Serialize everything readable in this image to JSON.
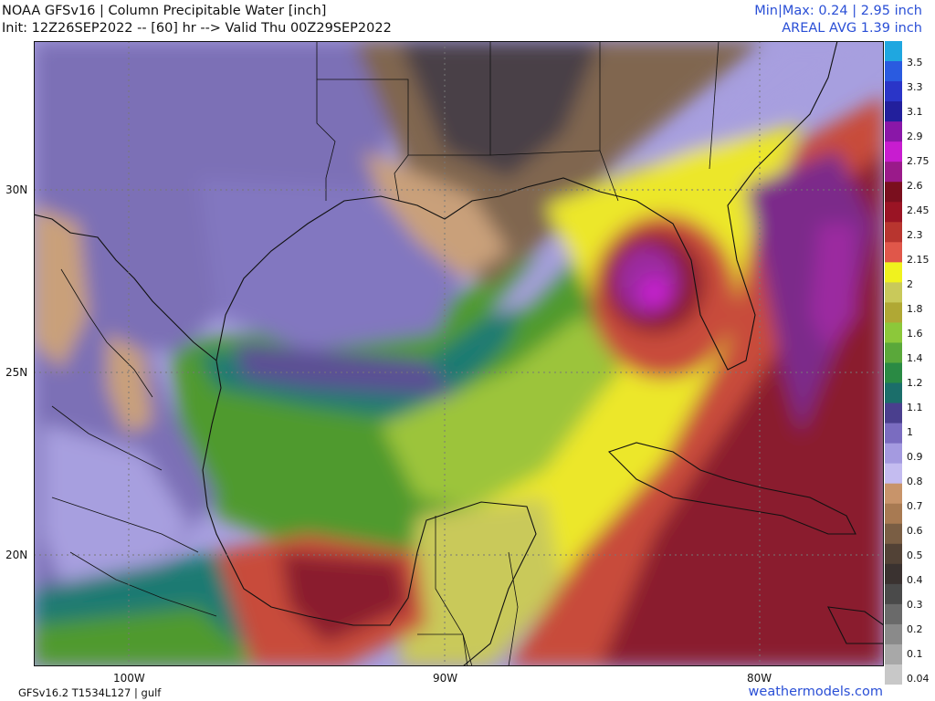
{
  "header": {
    "title_line1": "NOAA GFSv16 | Column Precipitable Water [inch]",
    "title_line2": "Init: 12Z26SEP2022 -- [60] hr --> Valid Thu 00Z29SEP2022",
    "stats_line1": "Min|Max: 0.24 | 2.95 inch",
    "stats_line2": "AREAL AVG 1.39 inch"
  },
  "map": {
    "lat_labels": [
      "30N",
      "25N",
      "20N"
    ],
    "lon_labels": [
      "100W",
      "90W",
      "80W"
    ],
    "field_colors": {
      "very_dry": "#4a4047",
      "dry_brown": "#806650",
      "tan": "#c9a07a",
      "lavender": "#a79fdf",
      "purple": "#7c6fb6",
      "teal": "#1d7a72",
      "green": "#4f9a2f",
      "lime": "#9cc43a",
      "yellow": "#ece72a",
      "red": "#c84b3b",
      "maroon": "#8a1f2e",
      "magenta": "#9b2aa0"
    }
  },
  "colorbar": {
    "labels": [
      "3.5",
      "3.3",
      "3.1",
      "2.9",
      "2.75",
      "2.6",
      "2.45",
      "2.3",
      "2.15",
      "2",
      "1.8",
      "1.6",
      "1.4",
      "1.2",
      "1.1",
      "1",
      "0.9",
      "0.8",
      "0.7",
      "0.6",
      "0.5",
      "0.4",
      "0.3",
      "0.2",
      "0.1",
      "0.04"
    ],
    "colors": [
      "#1fa7e0",
      "#2a5be0",
      "#2a35c8",
      "#221f9c",
      "#8a17a8",
      "#c81cd0",
      "#9a1a8a",
      "#7a0f1e",
      "#9a1424",
      "#b8352f",
      "#e0574a",
      "#f0f21e",
      "#c9c95a",
      "#b0a834",
      "#8cc83a",
      "#5aa83a",
      "#2a8a44",
      "#1b6e6a",
      "#4a3f8e",
      "#7a6cc0",
      "#a49ae0",
      "#c4bcf0",
      "#c8946a",
      "#a87a52",
      "#7a5e44",
      "#524236",
      "#3a3230",
      "#4a4a4a",
      "#6a6a6a",
      "#8a8a8a",
      "#a8a8a8",
      "#c8c8c8"
    ]
  },
  "footer": {
    "left": "GFSv16.2 T1534L127 | gulf",
    "right": "weathermodels.com"
  }
}
